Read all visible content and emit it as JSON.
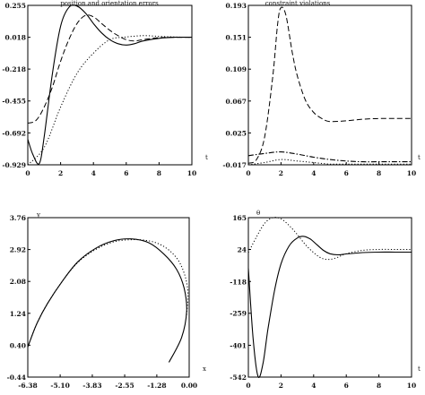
{
  "chart_data": [
    {
      "type": "line",
      "title": "position and orientation errors",
      "xlabel": "t",
      "ylabel": "",
      "xlim": [
        0,
        10
      ],
      "ylim": [
        -0.929,
        0.255
      ],
      "xticks": [
        0,
        2,
        4,
        6,
        8,
        10
      ],
      "yticks": [
        0.255,
        0.018,
        -0.218,
        -0.455,
        -0.692,
        -0.929
      ],
      "yticklabels": [
        "0.255",
        "0.018",
        "-0.218",
        "-0.455",
        "-0.692",
        "-0.929"
      ],
      "series": [
        {
          "style": "solid",
          "x": [
            0,
            0.3,
            0.7,
            1,
            1.5,
            2,
            2.5,
            3,
            3.5,
            4,
            4.5,
            5,
            5.5,
            6,
            6.5,
            7,
            8,
            9,
            10
          ],
          "y": [
            -0.74,
            -0.85,
            -0.92,
            -0.72,
            -0.25,
            0.1,
            0.24,
            0.25,
            0.2,
            0.12,
            0.05,
            0.0,
            -0.03,
            -0.04,
            -0.03,
            -0.01,
            0.01,
            0.018,
            0.018
          ]
        },
        {
          "style": "dashed",
          "x": [
            0,
            0.5,
            1,
            1.5,
            2,
            2.5,
            3,
            3.5,
            4,
            4.5,
            5,
            5.5,
            6,
            6.5,
            7,
            8,
            9,
            10
          ],
          "y": [
            -0.62,
            -0.6,
            -0.5,
            -0.35,
            -0.16,
            0.0,
            0.12,
            0.18,
            0.17,
            0.12,
            0.07,
            0.03,
            0.0,
            -0.01,
            0.0,
            0.015,
            0.018,
            0.018
          ]
        },
        {
          "style": "dotted",
          "x": [
            0,
            1,
            2,
            3,
            4,
            5,
            6,
            7,
            8,
            9,
            10
          ],
          "y": [
            -0.95,
            -0.8,
            -0.5,
            -0.25,
            -0.1,
            0.0,
            0.02,
            0.03,
            0.025,
            0.02,
            0.018
          ]
        }
      ]
    },
    {
      "type": "line",
      "title": "constraint violations",
      "xlabel": "t",
      "ylabel": "",
      "xlim": [
        0,
        10
      ],
      "ylim": [
        -0.017,
        0.193
      ],
      "xticks": [
        0,
        2,
        4,
        6,
        8,
        10
      ],
      "yticks": [
        0.193,
        0.151,
        0.109,
        0.067,
        0.025,
        -0.017
      ],
      "yticklabels": [
        "0.193",
        "0.151",
        "0.109",
        "0.067",
        "0.025",
        "-0.017"
      ],
      "series": [
        {
          "style": "dashed",
          "x": [
            0,
            0.5,
            1,
            1.5,
            1.8,
            2,
            2.3,
            2.7,
            3,
            3.5,
            4,
            4.5,
            5,
            6,
            7,
            8,
            9,
            10
          ],
          "y": [
            -0.015,
            -0.01,
            0.02,
            0.1,
            0.17,
            0.19,
            0.18,
            0.13,
            0.1,
            0.068,
            0.052,
            0.044,
            0.04,
            0.041,
            0.043,
            0.044,
            0.044,
            0.044
          ]
        },
        {
          "style": "dash-dot",
          "x": [
            0,
            1,
            2,
            3,
            4,
            5,
            6,
            7,
            8,
            9,
            10
          ],
          "y": [
            -0.005,
            -0.002,
            0.0,
            -0.003,
            -0.007,
            -0.01,
            -0.012,
            -0.013,
            -0.013,
            -0.013,
            -0.013
          ]
        },
        {
          "style": "dotted",
          "x": [
            0,
            1,
            2,
            3,
            4,
            5,
            6,
            7,
            8,
            9,
            10
          ],
          "y": [
            -0.017,
            -0.014,
            -0.01,
            -0.012,
            -0.014,
            -0.016,
            -0.016,
            -0.016,
            -0.016,
            -0.016,
            -0.016
          ]
        }
      ]
    },
    {
      "type": "line",
      "title": "",
      "xlabel": "x",
      "ylabel": "y",
      "xlim": [
        -6.38,
        0.0
      ],
      "ylim": [
        -0.44,
        3.76
      ],
      "xticks": [
        -6.38,
        -5.1,
        -3.83,
        -2.55,
        -1.28,
        0.0
      ],
      "xticklabels": [
        "-6.38",
        "-5.10",
        "-3.83",
        "-2.55",
        "-1.28",
        "0.00"
      ],
      "yticks": [
        3.76,
        2.92,
        2.08,
        1.24,
        0.4,
        -0.44
      ],
      "yticklabels": [
        "3.76",
        "2.92",
        "2.08",
        "1.24",
        "0.40",
        "-0.44"
      ],
      "series": [
        {
          "style": "solid",
          "x": [
            -0.8,
            -0.3,
            -0.1,
            -0.2,
            -0.5,
            -1.0,
            -1.6,
            -2.3,
            -3.0,
            -3.7,
            -4.4,
            -5.0,
            -5.6,
            -6.0,
            -6.3,
            -6.38
          ],
          "y": [
            -0.05,
            0.6,
            1.3,
            1.9,
            2.4,
            2.8,
            3.1,
            3.2,
            3.15,
            2.95,
            2.6,
            2.1,
            1.5,
            1.0,
            0.5,
            0.35
          ]
        },
        {
          "style": "dotted",
          "x": [
            -0.1,
            -0.05,
            -0.2,
            -0.5,
            -1.0,
            -1.6,
            -2.3,
            -3.0,
            -3.7,
            -4.4,
            -5.0,
            -5.6,
            -6.0,
            -6.3
          ],
          "y": [
            1.2,
            1.8,
            2.3,
            2.7,
            3.0,
            3.15,
            3.18,
            3.12,
            2.92,
            2.58,
            2.1,
            1.5,
            1.0,
            0.5
          ]
        }
      ]
    },
    {
      "type": "line",
      "title": "",
      "xlabel": "t",
      "ylabel": "θ",
      "xlim": [
        0,
        10
      ],
      "ylim": [
        -542,
        165
      ],
      "xticks": [
        0,
        2,
        4,
        6,
        8,
        10
      ],
      "yticks": [
        165,
        24,
        -118,
        -259,
        -401,
        -542
      ],
      "yticklabels": [
        "165",
        "24",
        "-118",
        "-259",
        "-401",
        "-542"
      ],
      "series": [
        {
          "style": "solid",
          "x": [
            0,
            0.3,
            0.6,
            0.9,
            1.2,
            1.6,
            2,
            2.5,
            3,
            3.4,
            3.8,
            4.2,
            4.6,
            5,
            5.5,
            6,
            7,
            8,
            9,
            10
          ],
          "y": [
            -60,
            -380,
            -540,
            -480,
            -330,
            -160,
            -40,
            40,
            75,
            82,
            70,
            45,
            20,
            5,
            0,
            4,
            10,
            12,
            12,
            12
          ]
        },
        {
          "style": "dotted",
          "x": [
            0,
            0.5,
            1,
            1.5,
            2,
            2.5,
            3,
            3.5,
            4,
            4.5,
            5,
            5.5,
            6,
            7,
            8,
            9,
            10
          ],
          "y": [
            10,
            80,
            140,
            165,
            160,
            130,
            90,
            45,
            10,
            -15,
            -20,
            -10,
            5,
            20,
            24,
            24,
            24
          ]
        }
      ]
    }
  ]
}
